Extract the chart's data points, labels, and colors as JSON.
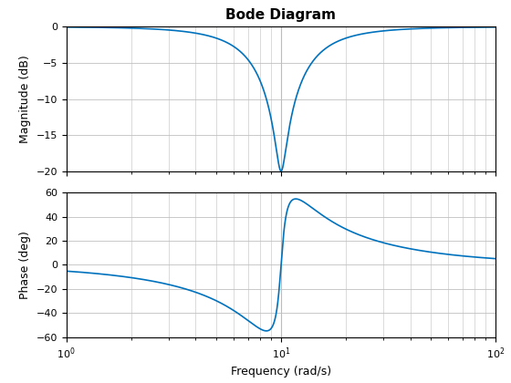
{
  "title": "Bode Diagram",
  "xlabel": "Frequency (rad/s)",
  "ylabel_mag": "Magnitude (dB)",
  "ylabel_phase": "Phase (deg)",
  "omega0": 10.0,
  "zeta_num": 0.05,
  "zeta_den": 0.5,
  "freq_min": 1.0,
  "freq_max": 100.0,
  "mag_ylim": [
    -20,
    0
  ],
  "mag_yticks": [
    0,
    -5,
    -10,
    -15,
    -20
  ],
  "phase_ylim": [
    -60,
    60
  ],
  "phase_yticks": [
    60,
    40,
    20,
    0,
    -20,
    -40,
    -60
  ],
  "line_color": "#0072BD",
  "line_width": 1.2,
  "grid_color": "#C0C0C0",
  "background_color": "#FFFFFF",
  "title_fontsize": 11,
  "label_fontsize": 9,
  "tick_fontsize": 8,
  "vline_color": "#AAAAAA",
  "vline_lw": 0.8,
  "n_points": 5000
}
